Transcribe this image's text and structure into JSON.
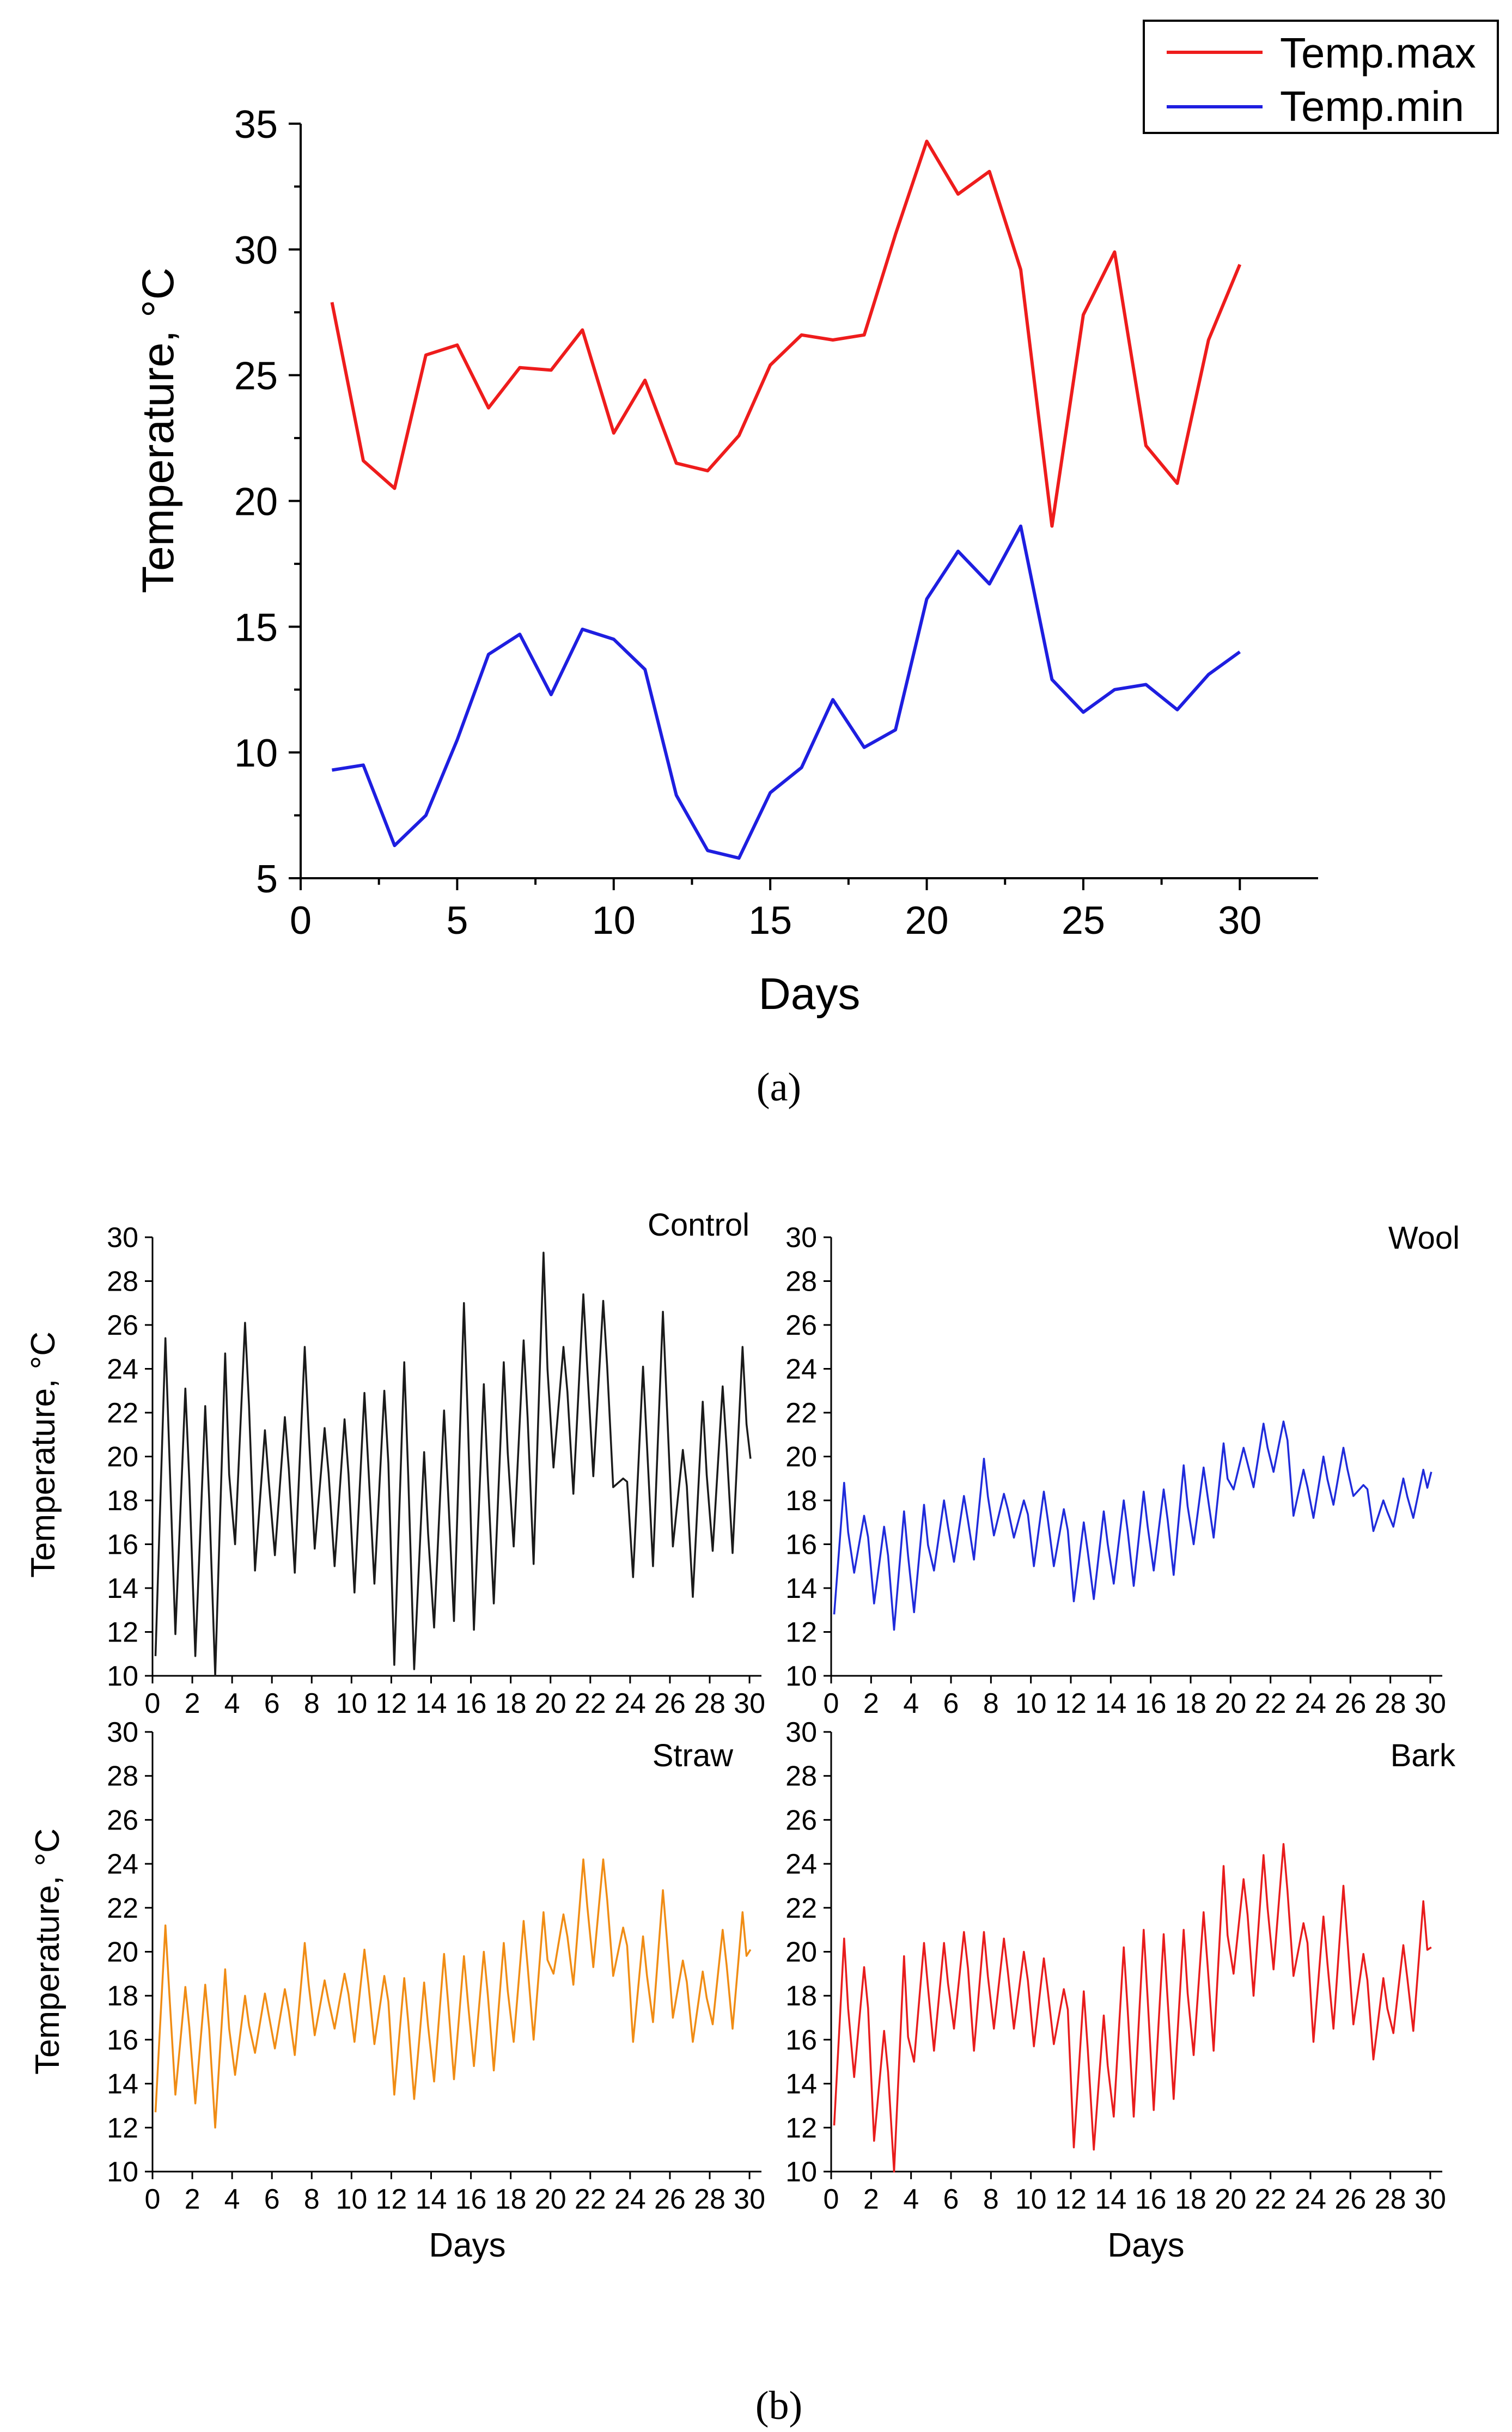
{
  "chart_data": [
    {
      "id": "a",
      "type": "line",
      "title": "",
      "xlabel": "Days",
      "ylabel": "Temperature, °C",
      "xlim": [
        0,
        32.5
      ],
      "ylim": [
        5,
        35
      ],
      "xticks": [
        0,
        5,
        10,
        15,
        20,
        25,
        30
      ],
      "yticks": [
        5,
        10,
        15,
        20,
        25,
        30,
        35
      ],
      "legend_position": "top-right",
      "x": [
        1,
        2,
        3,
        4,
        5,
        6,
        7,
        8,
        9,
        10,
        11,
        12,
        13,
        14,
        15,
        16,
        17,
        18,
        19,
        20,
        21,
        22,
        23,
        24,
        25,
        26,
        27,
        28,
        29,
        30
      ],
      "series": [
        {
          "name": "Temp.max",
          "color": "#ee1c1c",
          "values": [
            27.9,
            21.6,
            20.5,
            25.8,
            26.2,
            23.7,
            25.3,
            25.2,
            26.8,
            22.7,
            24.8,
            21.5,
            21.2,
            22.6,
            25.4,
            26.6,
            26.4,
            26.6,
            30.6,
            34.3,
            32.2,
            33.1,
            29.2,
            19.0,
            27.4,
            29.9,
            22.2,
            20.7,
            26.4,
            29.4
          ]
        },
        {
          "name": "Temp.min",
          "color": "#1e1ee0",
          "values": [
            9.3,
            9.5,
            6.3,
            7.5,
            10.5,
            13.9,
            14.7,
            12.3,
            14.9,
            14.5,
            13.3,
            8.3,
            6.1,
            5.8,
            8.4,
            9.4,
            12.1,
            10.2,
            10.9,
            16.1,
            18.0,
            16.7,
            19.0,
            12.9,
            11.6,
            12.5,
            12.7,
            11.7,
            13.1,
            14.0
          ]
        }
      ],
      "caption": "(a)"
    },
    {
      "id": "b-control",
      "type": "line",
      "title": "Control",
      "xlabel": "",
      "ylabel": "Temperature, °C",
      "xlim": [
        0,
        30.6
      ],
      "ylim": [
        10,
        30
      ],
      "xticks": [
        0,
        2,
        4,
        6,
        8,
        10,
        12,
        14,
        16,
        18,
        20,
        22,
        24,
        26,
        28,
        30
      ],
      "yticks": [
        10,
        12,
        14,
        16,
        18,
        20,
        22,
        24,
        26,
        28,
        30
      ],
      "series": [
        {
          "name": "Control",
          "color": "#1a1a1a",
          "daily_max": [
            25.4,
            23.1,
            22.3,
            24.7,
            26.1,
            21.2,
            21.8,
            25.0,
            21.3,
            21.7,
            22.9,
            23.0,
            24.3,
            20.2,
            22.1,
            27.0,
            23.3,
            24.3,
            25.3,
            29.3,
            25.0,
            27.4,
            27.1,
            19.0,
            24.1,
            26.6,
            20.3,
            22.5,
            23.2,
            25.0
          ],
          "daily_min": [
            10.9,
            11.9,
            10.9,
            10.0,
            16.0,
            14.8,
            15.5,
            14.7,
            15.8,
            15.0,
            13.8,
            14.2,
            10.5,
            10.3,
            12.2,
            12.5,
            12.1,
            13.3,
            15.9,
            15.1,
            19.5,
            18.3,
            19.1,
            18.6,
            14.5,
            15.0,
            15.9,
            13.6,
            15.7,
            15.6
          ],
          "end_value": 19.9
        }
      ]
    },
    {
      "id": "b-wool",
      "type": "line",
      "title": "Wool",
      "xlabel": "",
      "ylabel": "",
      "xlim": [
        0,
        30.6
      ],
      "ylim": [
        10,
        30
      ],
      "xticks": [
        0,
        2,
        4,
        6,
        8,
        10,
        12,
        14,
        16,
        18,
        20,
        22,
        24,
        26,
        28,
        30
      ],
      "yticks": [
        10,
        12,
        14,
        16,
        18,
        20,
        22,
        24,
        26,
        28,
        30
      ],
      "series": [
        {
          "name": "Wool",
          "color": "#1f2bdb",
          "daily_max": [
            18.8,
            17.3,
            16.8,
            17.5,
            17.8,
            18.0,
            18.2,
            19.9,
            18.3,
            18.0,
            18.4,
            17.6,
            17.0,
            17.5,
            18.0,
            18.4,
            18.5,
            19.6,
            19.5,
            20.6,
            20.4,
            21.5,
            21.6,
            19.4,
            20.0,
            20.4,
            18.7,
            18.0,
            19.0,
            19.4
          ],
          "daily_min": [
            12.8,
            14.7,
            13.3,
            12.1,
            12.9,
            14.8,
            15.2,
            15.3,
            16.4,
            16.3,
            15.0,
            15.0,
            13.4,
            13.5,
            14.2,
            14.1,
            14.8,
            14.6,
            16.0,
            16.3,
            18.5,
            18.6,
            19.3,
            17.3,
            17.2,
            17.8,
            18.2,
            16.6,
            16.8,
            17.2
          ],
          "end_value": 19.3
        }
      ]
    },
    {
      "id": "b-straw",
      "type": "line",
      "title": "Straw",
      "xlabel": "Days",
      "ylabel": "Temperature, °C",
      "xlim": [
        0,
        30.6
      ],
      "ylim": [
        10,
        30
      ],
      "xticks": [
        0,
        2,
        4,
        6,
        8,
        10,
        12,
        14,
        16,
        18,
        20,
        22,
        24,
        26,
        28,
        30
      ],
      "yticks": [
        10,
        12,
        14,
        16,
        18,
        20,
        22,
        24,
        26,
        28,
        30
      ],
      "series": [
        {
          "name": "Straw",
          "color": "#f08c14",
          "daily_max": [
            21.2,
            18.4,
            18.5,
            19.2,
            18.0,
            18.1,
            18.3,
            20.4,
            18.7,
            19.0,
            20.1,
            18.9,
            18.8,
            18.6,
            19.9,
            19.8,
            20.0,
            20.4,
            21.4,
            21.8,
            21.7,
            24.2,
            24.2,
            21.1,
            20.7,
            22.8,
            19.6,
            19.1,
            21.0,
            21.8
          ],
          "daily_min": [
            12.7,
            13.5,
            13.1,
            12.0,
            14.4,
            15.4,
            15.6,
            15.3,
            16.2,
            16.5,
            15.9,
            15.8,
            13.5,
            13.3,
            14.1,
            14.2,
            14.8,
            14.6,
            15.9,
            16.0,
            19.0,
            18.5,
            19.3,
            18.9,
            15.9,
            16.8,
            17.0,
            15.9,
            16.7,
            16.5
          ],
          "end_value": 20.1
        }
      ]
    },
    {
      "id": "b-bark",
      "type": "line",
      "title": "Bark",
      "xlabel": "Days",
      "ylabel": "",
      "xlim": [
        0,
        30.6
      ],
      "ylim": [
        10,
        30
      ],
      "xticks": [
        0,
        2,
        4,
        6,
        8,
        10,
        12,
        14,
        16,
        18,
        20,
        22,
        24,
        26,
        28,
        30
      ],
      "yticks": [
        10,
        12,
        14,
        16,
        18,
        20,
        22,
        24,
        26,
        28,
        30
      ],
      "series": [
        {
          "name": "Bark",
          "color": "#e81c1c",
          "daily_max": [
            20.6,
            19.3,
            16.4,
            19.8,
            20.4,
            20.4,
            20.9,
            20.9,
            20.6,
            20.0,
            19.7,
            18.3,
            18.2,
            17.1,
            20.2,
            21.0,
            20.8,
            21.0,
            21.8,
            23.9,
            23.3,
            24.4,
            24.9,
            21.3,
            21.6,
            23.0,
            19.9,
            18.8,
            20.3,
            22.3
          ],
          "daily_min": [
            12.1,
            14.3,
            11.4,
            10.0,
            15.0,
            15.5,
            16.5,
            15.5,
            16.5,
            16.5,
            15.7,
            15.8,
            11.1,
            11.0,
            12.5,
            12.5,
            12.8,
            13.3,
            15.3,
            15.5,
            19.0,
            18.0,
            19.2,
            18.9,
            15.9,
            16.5,
            16.7,
            15.1,
            16.3,
            16.4
          ],
          "end_value": 20.2
        }
      ]
    }
  ],
  "captions": {
    "a": "(a)",
    "b": "(b)"
  },
  "legend": {
    "items": [
      "Temp.max",
      "Temp.min"
    ]
  }
}
